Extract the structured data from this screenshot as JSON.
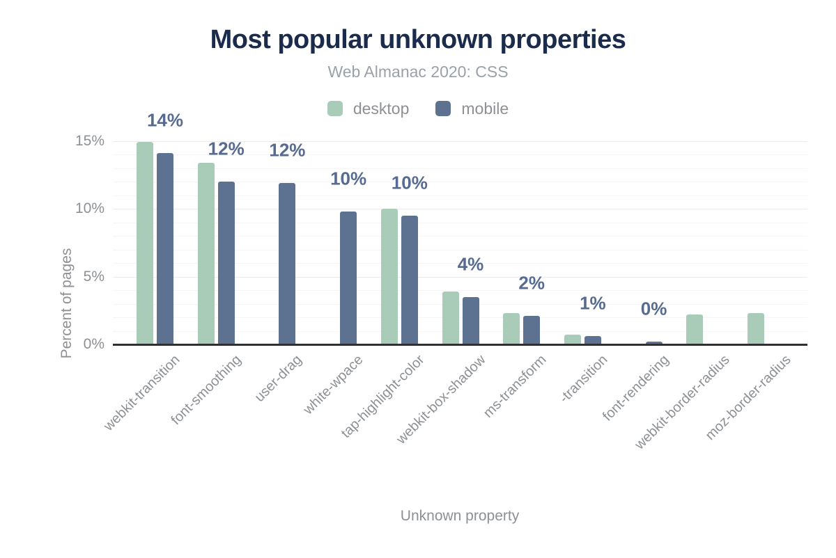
{
  "figure": {
    "title": "Most popular unknown properties",
    "subtitle": "Web Almanac 2020: CSS"
  },
  "colors": {
    "title_text": "#1b2b4b",
    "subtitle_text": "#9ba1a8",
    "axis_text": "#8d9094",
    "data_label_text": "#566b8f",
    "axis_line": "#2e3033",
    "grid_minor": "#f5f5f7",
    "grid_major": "#ebebee",
    "background": "#ffffff",
    "desktop": "#a9ccb9",
    "mobile": "#5d7190"
  },
  "chart_data": {
    "type": "bar",
    "title": "Most popular unknown properties",
    "subtitle": "Web Almanac 2020: CSS",
    "xlabel": "Unknown property",
    "ylabel": "Percent of pages",
    "ylim": [
      0,
      15
    ],
    "ytick_values": [
      0,
      5,
      10,
      15
    ],
    "ytick_labels": [
      "0%",
      "5%",
      "10%",
      "15%"
    ],
    "grid": "faint horizontal minor gridlines every 1%, slightly darker at 5% majors",
    "legend_position": "top-center",
    "categories": [
      "webkit-transition",
      "font-smoothing",
      "user-drag",
      "white-wpace",
      "tap-highlight-color",
      "webkit-box-shadow",
      "ms-transform",
      "-transition",
      "font-rendering",
      "webkit-border-radius",
      "moz-border-radius"
    ],
    "series": [
      {
        "name": "desktop",
        "color": "#a9ccb9",
        "values": [
          14.9,
          13.4,
          null,
          null,
          10.0,
          3.9,
          2.3,
          0.7,
          null,
          2.2,
          2.3
        ]
      },
      {
        "name": "mobile",
        "color": "#5d7190",
        "values": [
          14.1,
          12.0,
          11.9,
          9.8,
          9.5,
          3.5,
          2.1,
          0.6,
          0.2,
          null,
          null
        ]
      }
    ],
    "bar_labels": [
      "14%",
      "12%",
      "12%",
      "10%",
      "10%",
      "4%",
      "2%",
      "1%",
      "0%",
      "",
      ""
    ]
  }
}
